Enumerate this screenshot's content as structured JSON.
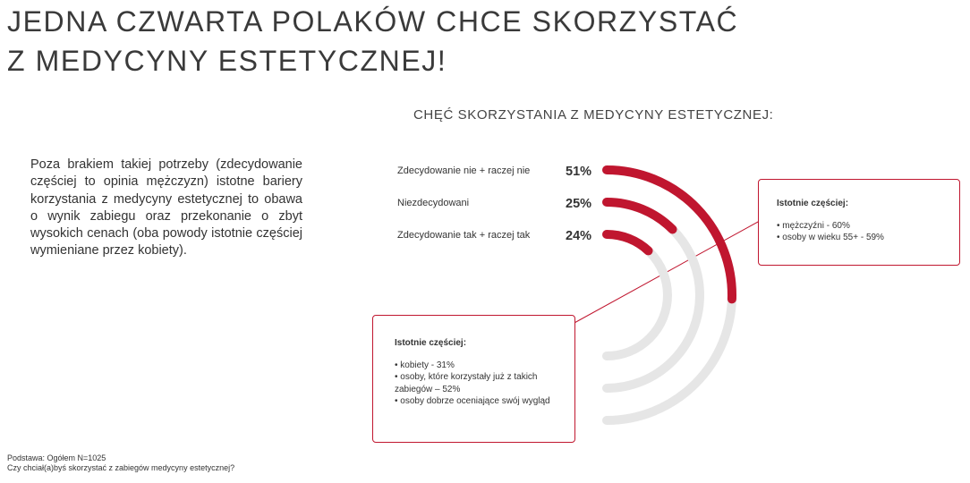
{
  "title": {
    "line1": "JEDNA CZWARTA POLAKÓW CHCE SKORZYSTAĆ",
    "line2": "Z MEDYCYNY ESTETYCZNEJ!"
  },
  "intro_text": "Poza brakiem takiej potrzeby (zdecydowanie częściej to opinia mężczyzn) istotne bariery korzystania z medycyny estetycznej to obawa o wynik zabiegu oraz przekonanie o zbyt wysokich cenach (oba powody istotnie częściej wymieniane przez kobiety).",
  "chart_data": {
    "type": "radial-bar",
    "title": "CHĘĆ SKORZYSTANIA Z MEDYCYNY ESTETYCZNEJ:",
    "categories": [
      "Zdecydowanie nie + raczej nie",
      "Niezdecydowani",
      "Zdecydowanie tak + raczej tak"
    ],
    "values": [
      51,
      25,
      24
    ],
    "value_labels": [
      "51%",
      "25%",
      "24%"
    ],
    "unit": "%",
    "max": 100,
    "colors": {
      "bar": "#c0162f",
      "track": "#e6e6e6"
    }
  },
  "callouts": {
    "right": {
      "heading": "Istotnie częściej:",
      "items": [
        "mężczyźni - 60%",
        "osoby w wieku 55+ - 59%"
      ]
    },
    "left": {
      "heading": "Istotnie częściej:",
      "items": [
        "kobiety - 31%",
        "osoby, które korzystały już z takich zabiegów – 52%",
        "osoby dobrze oceniające swój wygląd"
      ]
    }
  },
  "footnote": {
    "base": "Podstawa: Ogółem N=1025",
    "question": "Czy chciał(a)byś skorzystać z zabiegów medycyny estetycznej?"
  }
}
